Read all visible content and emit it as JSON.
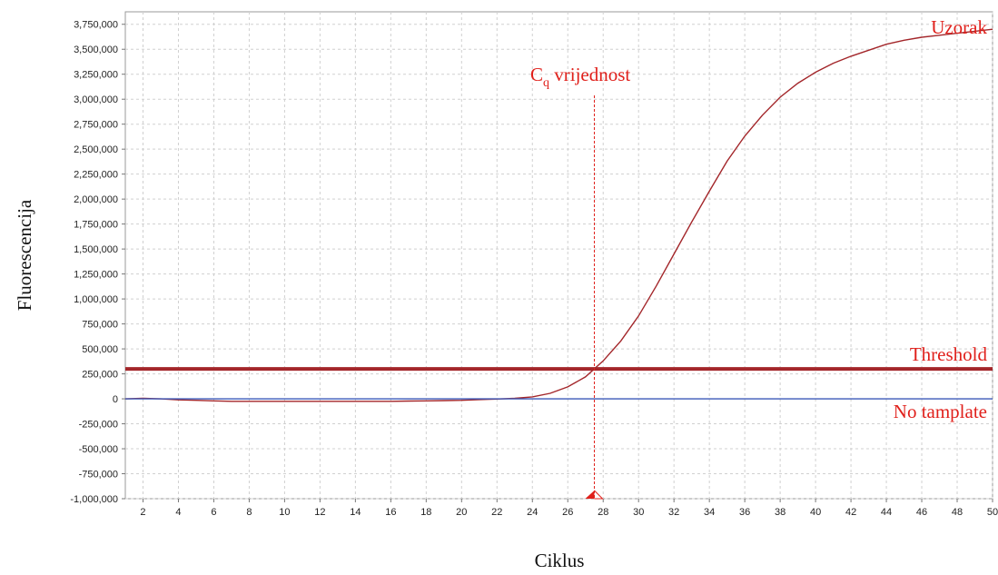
{
  "chart_data": {
    "type": "line",
    "xlabel": "Ciklus",
    "ylabel": "Fluorescencija",
    "xlim": [
      1,
      50
    ],
    "ylim": [
      -1000000,
      3750000
    ],
    "x_ticks": [
      2,
      4,
      6,
      8,
      10,
      12,
      14,
      16,
      18,
      20,
      22,
      24,
      26,
      28,
      30,
      32,
      34,
      36,
      38,
      40,
      42,
      44,
      46,
      48,
      50
    ],
    "y_ticks": [
      3750000,
      3500000,
      3250000,
      3000000,
      2750000,
      2500000,
      2250000,
      2000000,
      1750000,
      1500000,
      1250000,
      1000000,
      750000,
      500000,
      250000,
      0,
      -250000,
      -500000,
      -750000,
      -1000000
    ],
    "y_tick_labels": [
      "3,750,000",
      "3,500,000",
      "3,250,000",
      "3,000,000",
      "2,750,000",
      "2,500,000",
      "2,250,000",
      "2,000,000",
      "1,750,000",
      "1,500,000",
      "1,250,000",
      "1,000,000",
      "750,000",
      "500,000",
      "250,000",
      "0",
      "-250,000",
      "-500,000",
      "-750,000",
      "-1,000,000"
    ],
    "grid": true,
    "series": [
      {
        "name": "Uzorak",
        "color": "#a3262a",
        "x": [
          1,
          2,
          3,
          4,
          5,
          6,
          7,
          8,
          9,
          10,
          11,
          12,
          13,
          14,
          15,
          16,
          17,
          18,
          19,
          20,
          21,
          22,
          23,
          24,
          25,
          26,
          27,
          28,
          29,
          30,
          31,
          32,
          33,
          34,
          35,
          36,
          37,
          38,
          39,
          40,
          41,
          42,
          43,
          44,
          45,
          46,
          47,
          48,
          49,
          50
        ],
        "y": [
          0,
          5000,
          0,
          -10000,
          -15000,
          -20000,
          -25000,
          -25000,
          -25000,
          -25000,
          -25000,
          -25000,
          -25000,
          -25000,
          -25000,
          -25000,
          -22000,
          -20000,
          -18000,
          -15000,
          -8000,
          -2000,
          5000,
          20000,
          55000,
          120000,
          220000,
          380000,
          580000,
          830000,
          1130000,
          1450000,
          1770000,
          2080000,
          2380000,
          2630000,
          2840000,
          3020000,
          3160000,
          3270000,
          3360000,
          3430000,
          3490000,
          3550000,
          3590000,
          3620000,
          3640000,
          3660000,
          3680000,
          3700000
        ]
      },
      {
        "name": "No tamplate",
        "color": "#3a58b8",
        "x": [
          1,
          50
        ],
        "y": [
          0,
          0
        ]
      }
    ],
    "threshold": {
      "name": "Threshold",
      "value": 300000,
      "color": "#a3262a"
    },
    "cq": {
      "label_main": "C",
      "label_sub": "q",
      "label_rest": " vrijednost",
      "x": 27.5,
      "color": "#e0201b"
    },
    "annotations": {
      "sample_label": "Uzorak",
      "threshold_label": "Threshold",
      "no_template_label": "No tamplate"
    }
  }
}
